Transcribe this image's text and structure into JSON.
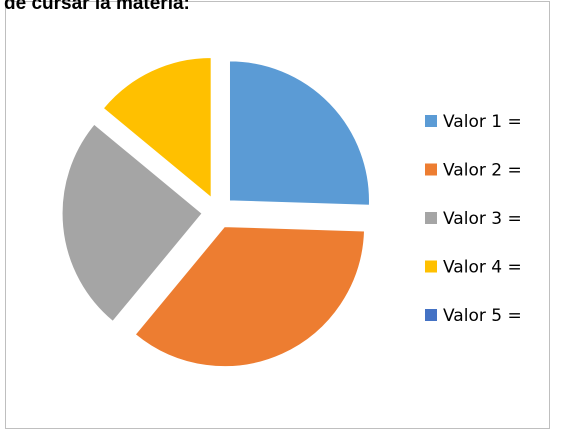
{
  "chart_data": {
    "type": "pie",
    "title": "de cursar la materia:",
    "categories": [
      "Valor 1 =",
      "Valor 2 =",
      "Valor 3 =",
      "Valor 4 =",
      "Valor 5 ="
    ],
    "values": [
      25.5,
      35.5,
      25,
      14,
      0
    ],
    "colors": [
      "#5b9bd5",
      "#ed7d31",
      "#a5a5a5",
      "#ffc000",
      "#4472c4"
    ],
    "exploded": true,
    "legend": "right"
  }
}
